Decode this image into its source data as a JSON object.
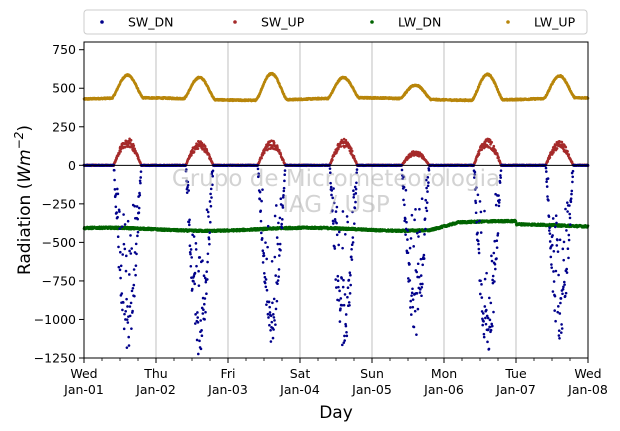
{
  "chart_data": {
    "type": "scatter",
    "title": "",
    "xlabel": "Day",
    "ylabel": "Radiation (Wm⁻²)",
    "ylabel_plain": "Radiation (",
    "ylabel_unit_base": "Wm",
    "ylabel_unit_exp": "−2",
    "ylabel_close": ")",
    "ylim": [
      -1250,
      800
    ],
    "yticks": [
      -1250,
      -1000,
      -750,
      -500,
      -250,
      0,
      250,
      500,
      750
    ],
    "ytick_labels": [
      "−1250",
      "−1000",
      "−750",
      "−500",
      "−250",
      "0",
      "250",
      "500",
      "750"
    ],
    "xlim_days": [
      0,
      7
    ],
    "xticks": [
      {
        "day": 0,
        "line1": "Wed",
        "line2": "Jan-01"
      },
      {
        "day": 1,
        "line1": "Thu",
        "line2": "Jan-02"
      },
      {
        "day": 2,
        "line1": "Fri",
        "line2": "Jan-03"
      },
      {
        "day": 3,
        "line1": "Sat",
        "line2": "Jan-04"
      },
      {
        "day": 4,
        "line1": "Sun",
        "line2": "Jan-05"
      },
      {
        "day": 5,
        "line1": "Mon",
        "line2": "Jan-06"
      },
      {
        "day": 6,
        "line1": "Tue",
        "line2": "Jan-07"
      },
      {
        "day": 7,
        "line1": "Wed",
        "line2": "Jan-08"
      }
    ],
    "grid": "vertical",
    "zero_line": true,
    "legend_position": "top",
    "watermark_line1": "Grupo de Micrometeorologia",
    "watermark_line2": "IAG / USP",
    "series": [
      {
        "name": "SW_DN",
        "color": "#00008b",
        "daily_min": [
          -1230,
          -1240,
          -1150,
          -1190,
          -1110,
          -1230,
          -1160
        ],
        "peak_hour": 14.5,
        "half_width_h": 4.6
      },
      {
        "name": "SW_UP",
        "color": "#a52a2a",
        "daily_max": [
          170,
          150,
          155,
          165,
          90,
          165,
          150
        ],
        "peak_hour": 14.5,
        "half_width_h": 4.6
      },
      {
        "name": "LW_DN",
        "color": "#006400",
        "base": -415,
        "range": [
          -440,
          -345
        ]
      },
      {
        "name": "LW_UP",
        "color": "#b8860b",
        "night_level": 430,
        "daily_max": [
          585,
          570,
          595,
          570,
          520,
          590,
          580
        ]
      }
    ]
  }
}
